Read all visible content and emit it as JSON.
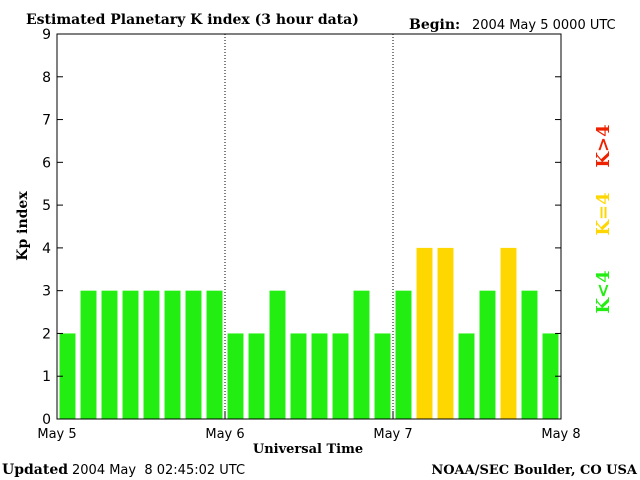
{
  "chart_data": {
    "type": "bar",
    "title": "Estimated Planetary K index (3 hour data)",
    "begin_label": "Begin:",
    "begin_value": "2004 May 5 0000 UTC",
    "xlabel": "Universal Time",
    "ylabel": "Kp index",
    "ylim": [
      0,
      9
    ],
    "yticks": [
      "0",
      "1",
      "2",
      "3",
      "4",
      "5",
      "6",
      "7",
      "8",
      "9"
    ],
    "x_range_days": [
      0,
      3
    ],
    "x_tick_labels": [
      "May 5",
      "May 6",
      "May 7",
      "May 8"
    ],
    "day_separators": [
      1,
      2
    ],
    "bars_per_day": 8,
    "values": [
      2,
      3,
      3,
      3,
      3,
      3,
      3,
      3,
      2,
      2,
      3,
      2,
      2,
      2,
      3,
      2,
      3,
      4,
      4,
      2,
      3,
      4,
      3,
      2
    ],
    "colors": {
      "below": "#22ee11",
      "equal": "#ffd700",
      "above": "#ee2200"
    },
    "legend": [
      {
        "label": "K<4",
        "color": "#22ee11"
      },
      {
        "label": "K=4",
        "color": "#ffd700"
      },
      {
        "label": "K>4",
        "color": "#ee2200"
      }
    ],
    "grid": false
  },
  "footer": {
    "updated_label": "Updated",
    "updated_value": "2004 May  8 02:45:02 UTC",
    "credit": "NOAA/SEC Boulder, CO USA"
  }
}
